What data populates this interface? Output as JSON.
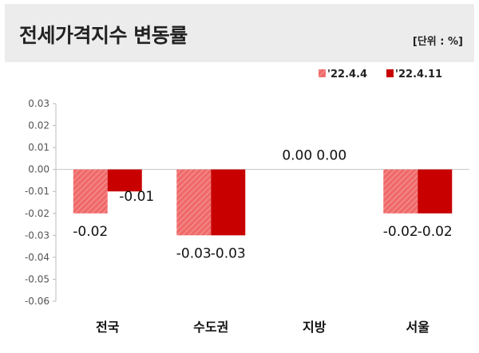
{
  "header": {
    "title": "전세가격지수 변동률",
    "unit": "[단위 : %]"
  },
  "chart_data": {
    "type": "bar",
    "categories": [
      "전국",
      "수도권",
      "지방",
      "서울"
    ],
    "series": [
      {
        "name": "'22.4.4",
        "values": [
          -0.02,
          -0.03,
          0.0,
          -0.02
        ],
        "color": "#f06a6a",
        "pattern": "hatched"
      },
      {
        "name": "'22.4.11",
        "values": [
          -0.01,
          -0.03,
          0.0,
          -0.02
        ],
        "color": "#c80000",
        "pattern": "solid"
      }
    ],
    "data_labels": [
      [
        "-0.02",
        "-0.03",
        "0.00",
        "-0.02"
      ],
      [
        "-0.01",
        "-0.03",
        "0.00",
        "-0.02"
      ]
    ],
    "ylim": [
      -0.06,
      0.03
    ],
    "yticks": [
      0.03,
      0.02,
      0.01,
      0.0,
      -0.01,
      -0.02,
      -0.03,
      -0.04,
      -0.05,
      -0.06
    ],
    "ytick_labels": [
      "0.03",
      "0.02",
      "0.01",
      "0.00",
      "-0.01",
      "-0.02",
      "-0.03",
      "-0.04",
      "-0.05",
      "-0.06"
    ],
    "legend_position": "top-right",
    "grid": false
  }
}
